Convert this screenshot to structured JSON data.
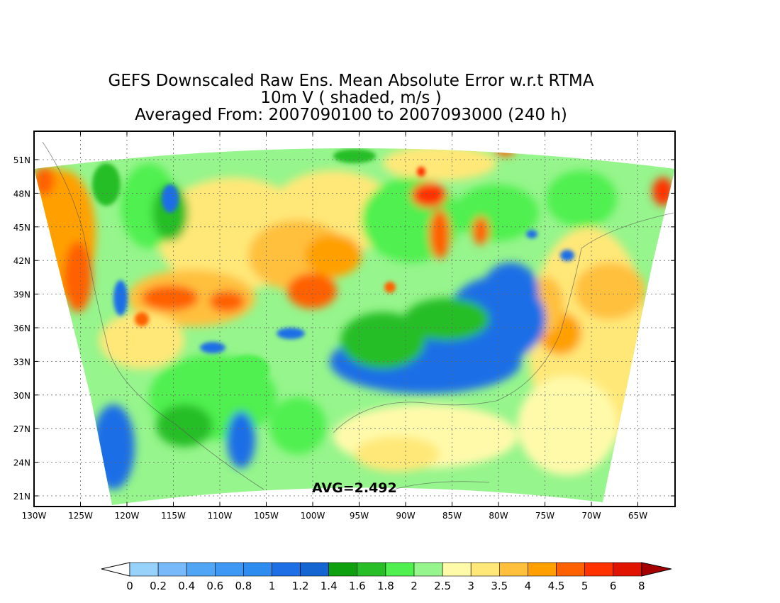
{
  "title": {
    "line1": "GEFS Downscaled Raw Ens. Mean Absolute Error w.r.t RTMA",
    "line2": "10m V ( shaded, m/s )",
    "line3": "Averaged From: 2007090100 to 2007093000 (240 h)"
  },
  "average_label": "AVG=2.492",
  "lat_labels": [
    "51N",
    "48N",
    "45N",
    "42N",
    "39N",
    "36N",
    "33N",
    "30N",
    "27N",
    "24N",
    "21N"
  ],
  "lon_labels": [
    "130W",
    "125W",
    "120W",
    "115W",
    "110W",
    "105W",
    "100W",
    "95W",
    "90W",
    "85W",
    "80W",
    "75W",
    "70W",
    "65W"
  ],
  "colorbar": {
    "labels": [
      "0",
      "0.2",
      "0.4",
      "0.6",
      "0.8",
      "1",
      "1.2",
      "1.4",
      "1.6",
      "1.8",
      "2",
      "2.5",
      "3",
      "3.5",
      "4",
      "4.5",
      "5",
      "6",
      "8"
    ],
    "colors": [
      "#96d2fa",
      "#78b9fa",
      "#50a5f5",
      "#3c97f5",
      "#2d8cf0",
      "#1e6ee6",
      "#1464d2",
      "#0fa00f",
      "#28be28",
      "#50f050",
      "#96f58c",
      "#fffaaa",
      "#ffe878",
      "#ffc03c",
      "#ffa000",
      "#ff6000",
      "#ff3200",
      "#e11400",
      "#a50000"
    ],
    "under_color": "#ffffff",
    "over_color": "#a50000"
  },
  "map_colors": {
    "dark_blue": "#1e6ee6",
    "light_green": "#96f58c",
    "green": "#50f050",
    "dark_green": "#28be28",
    "pale_yellow": "#fffaaa",
    "yellow": "#ffe878",
    "light_orange": "#ffc03c",
    "orange": "#ffa000",
    "red_orange": "#ff6000",
    "red": "#ff3200"
  }
}
